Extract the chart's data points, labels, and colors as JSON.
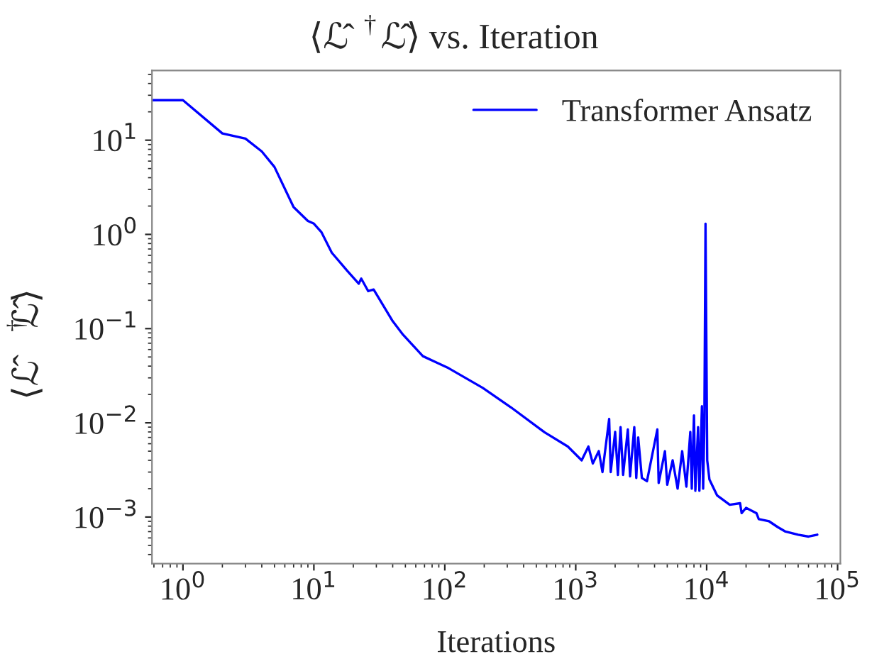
{
  "chart_data": {
    "type": "line",
    "title": "⟨ℒ̂$^{†}$ℒ̂⟩ vs. Iteration",
    "xlabel": "Iterations",
    "ylabel": "⟨ℒ̂$^{†}$ℒ̂⟩",
    "log": "xy",
    "grid": false,
    "legend": "top right",
    "line_style": "solid",
    "marker": "none",
    "xlim": [
      0.58,
      105000
    ],
    "ylim": [
      0.00032,
      55
    ],
    "xticks": [
      {
        "value": 1,
        "label": "10$^{0}$"
      },
      {
        "value": 10,
        "label": "10$^{1}$"
      },
      {
        "value": 100,
        "label": "10$^{2}$"
      },
      {
        "value": 1000,
        "label": "10$^{3}$"
      },
      {
        "value": 10000,
        "label": "10$^{4}$"
      },
      {
        "value": 100000,
        "label": "10$^{5}$"
      }
    ],
    "yticks": [
      {
        "value": 0.001,
        "label": "10$^{−3}$"
      },
      {
        "value": 0.01,
        "label": "10$^{−2}$"
      },
      {
        "value": 0.1,
        "label": "10$^{−1}$"
      },
      {
        "value": 1,
        "label": "10$^{0}$"
      },
      {
        "value": 10,
        "label": "10$^{1}$"
      }
    ],
    "series": [
      {
        "name": "Transformer Ansatz",
        "color": "#0000ff",
        "x": [
          0.58,
          1,
          2,
          3,
          4,
          5,
          7,
          9,
          10,
          11.4,
          13.7,
          18,
          22,
          23,
          26,
          28.6,
          40,
          48,
          68,
          107,
          195,
          320,
          580,
          870,
          1110,
          1250,
          1350,
          1500,
          1600,
          1800,
          1850,
          2000,
          2100,
          2200,
          2300,
          2500,
          2600,
          2800,
          2900,
          3000,
          3200,
          3500,
          4200,
          4300,
          4800,
          5000,
          5500,
          6000,
          6500,
          7000,
          7500,
          7700,
          8000,
          8200,
          8600,
          8800,
          9200,
          9400,
          9600,
          9800,
          10100,
          10500,
          12000,
          15000,
          18000,
          18500,
          20000,
          24000,
          25000,
          30000,
          35000,
          40000,
          50000,
          60000,
          70000
        ],
        "values": [
          26.6,
          26.6,
          11.8,
          10.4,
          7.6,
          5.2,
          1.95,
          1.39,
          1.3,
          1.06,
          0.64,
          0.41,
          0.3,
          0.34,
          0.25,
          0.26,
          0.12,
          0.086,
          0.051,
          0.038,
          0.0235,
          0.0146,
          0.0079,
          0.0056,
          0.004,
          0.0056,
          0.0037,
          0.005,
          0.003,
          0.011,
          0.003,
          0.008,
          0.0028,
          0.009,
          0.0028,
          0.0085,
          0.0027,
          0.009,
          0.0026,
          0.007,
          0.0026,
          0.0024,
          0.0085,
          0.0023,
          0.005,
          0.0022,
          0.004,
          0.002,
          0.005,
          0.0021,
          0.008,
          0.002,
          0.012,
          0.0019,
          0.009,
          0.0019,
          0.015,
          0.002,
          0.009,
          1.3,
          0.004,
          0.0025,
          0.0017,
          0.00135,
          0.0014,
          0.0011,
          0.00125,
          0.0011,
          0.00095,
          0.0009,
          0.00078,
          0.0007,
          0.00065,
          0.00062,
          0.00065
        ]
      }
    ]
  }
}
